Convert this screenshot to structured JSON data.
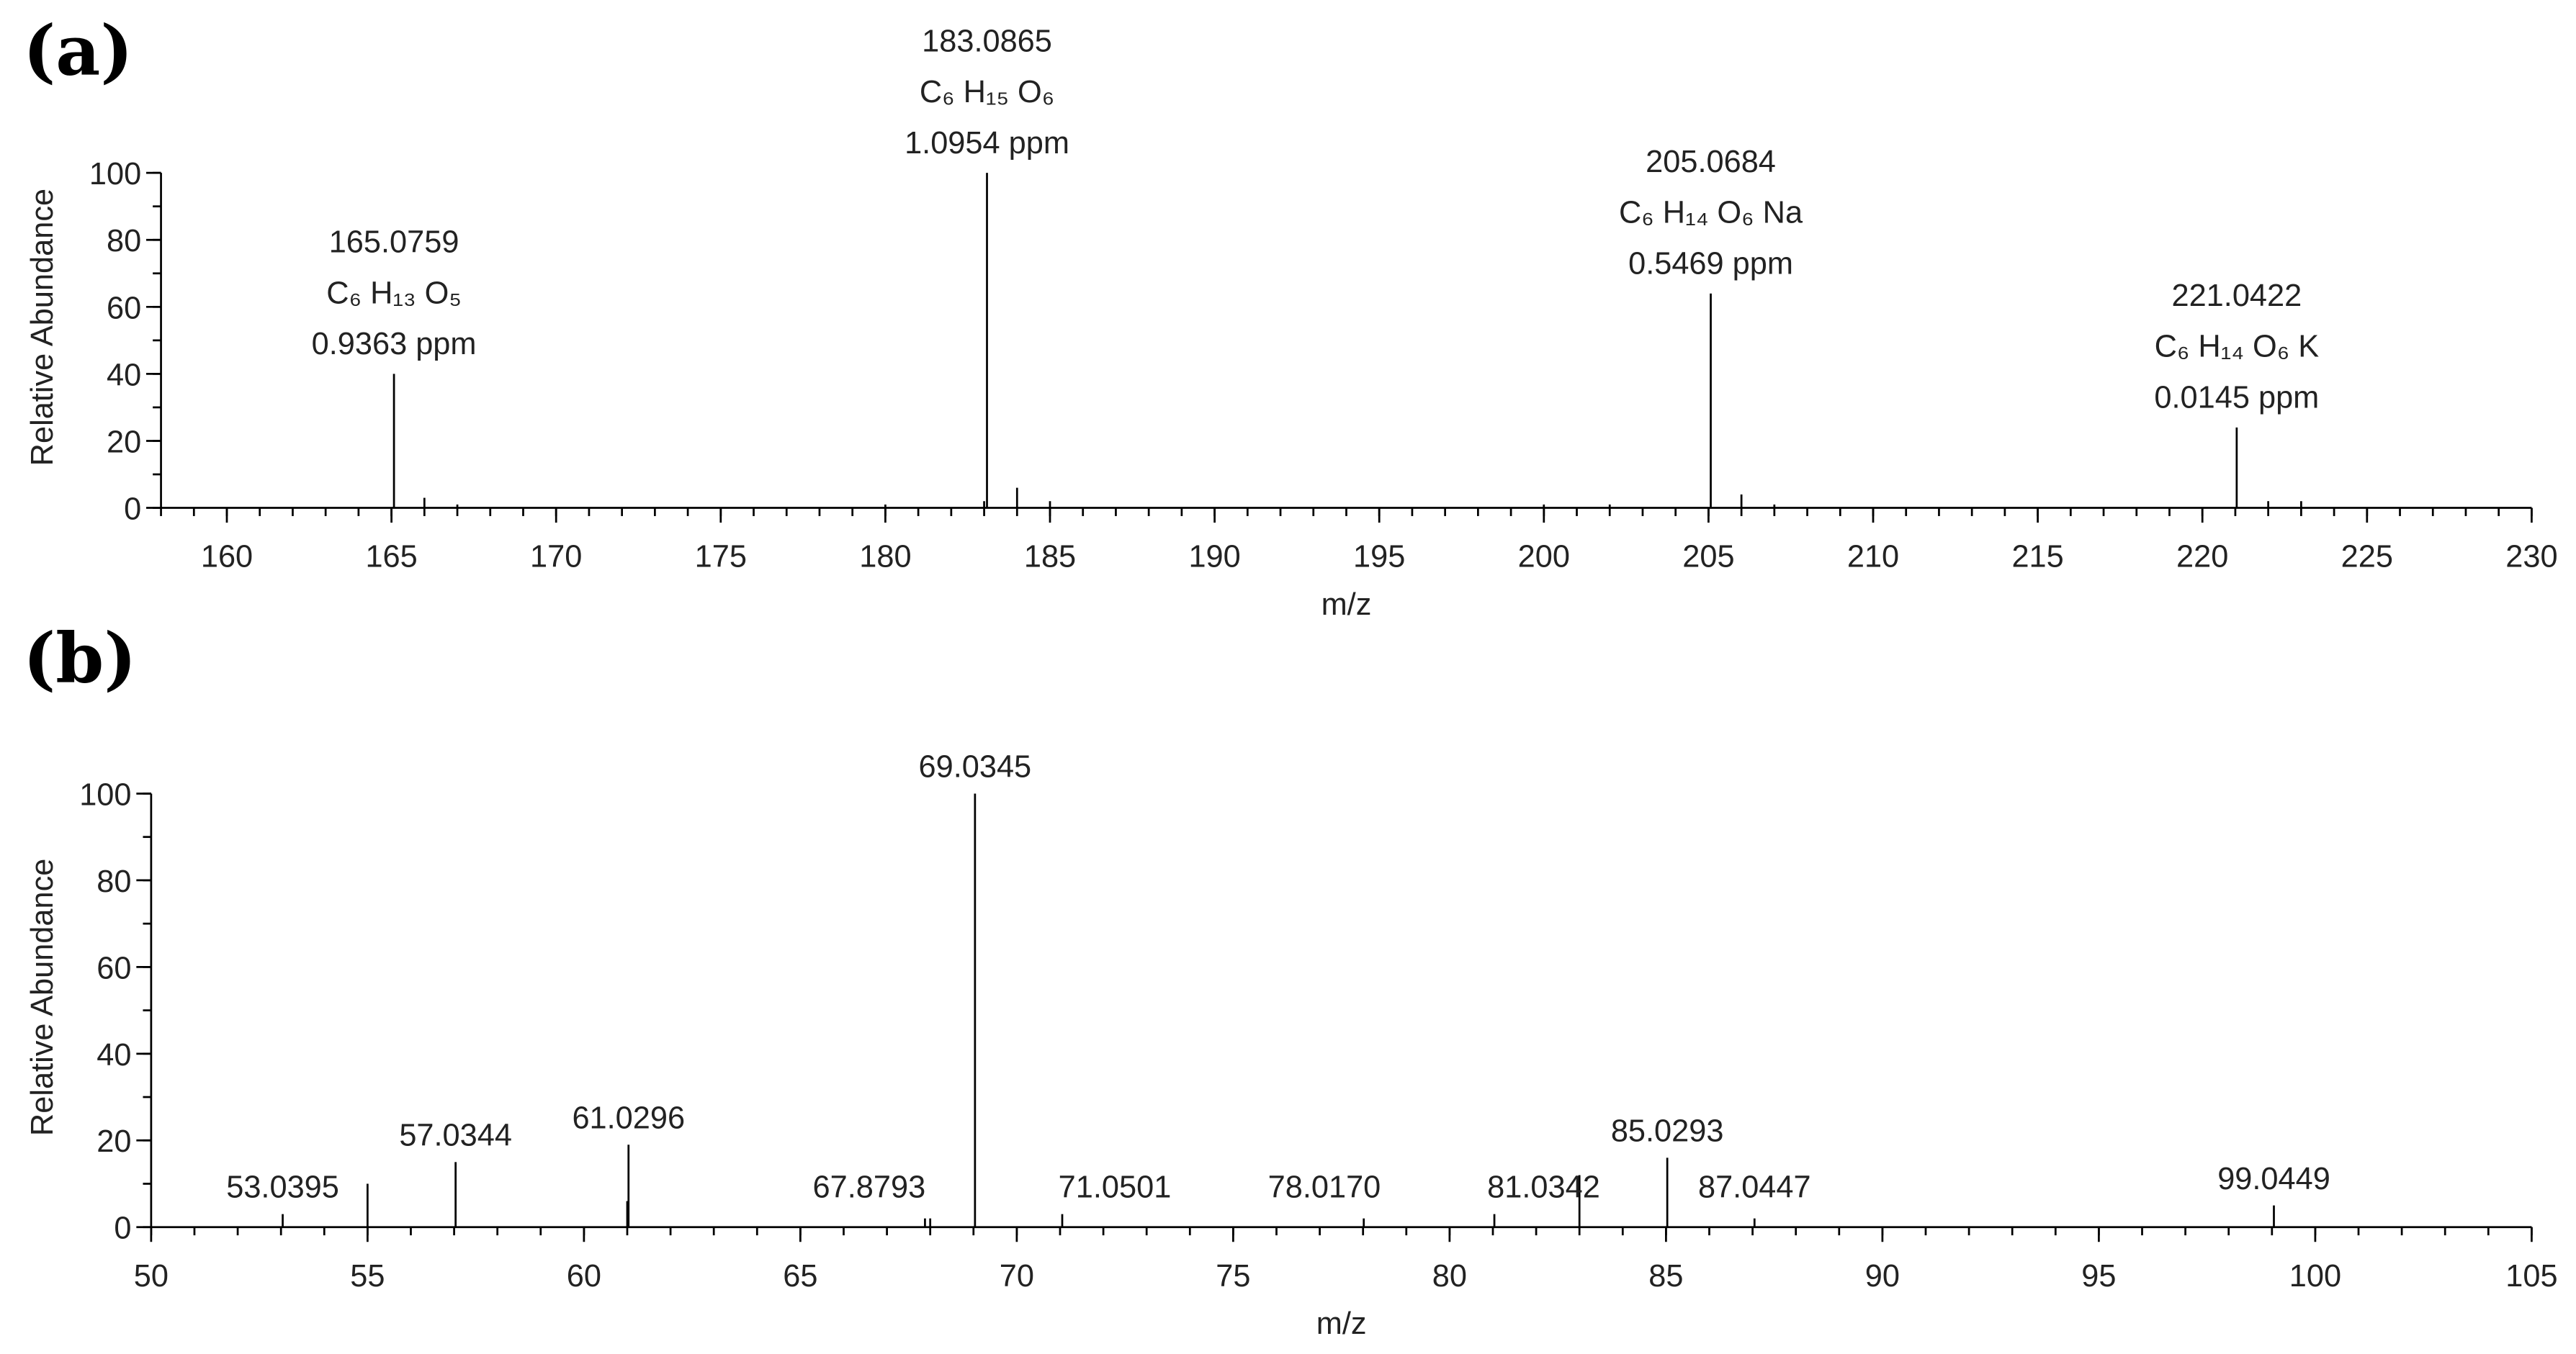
{
  "chart_data": [
    {
      "type": "bar",
      "panel_label": "(a)",
      "xlabel": "m/z",
      "ylabel": "Relative Abundance",
      "color": "#000000",
      "x": [
        165.0759,
        183.0865,
        205.0684,
        221.0422
      ],
      "values": [
        40,
        100,
        64,
        24
      ],
      "formulas": [
        "C₆ H₁₃ O₅",
        "C₆ H₁₅ O₆",
        "C₆ H₁₄ O₆ Na",
        "C₆ H₁₄ O₆ K"
      ],
      "ppm": [
        "0.9363 ppm",
        "1.0954 ppm",
        "0.5469 ppm",
        "0.0145 ppm"
      ],
      "minor_x": [
        166,
        167,
        180,
        183,
        184,
        185,
        200,
        202,
        206,
        207,
        222,
        223
      ],
      "minor_values": [
        3,
        1,
        1,
        2,
        6,
        2,
        1,
        1,
        4,
        1,
        2,
        2
      ],
      "xlim": [
        158,
        230
      ],
      "xticks": [
        160,
        165,
        170,
        175,
        180,
        185,
        190,
        195,
        200,
        205,
        210,
        215,
        220,
        225,
        230
      ],
      "xminor_step": 1,
      "ylim": [
        0,
        100
      ],
      "yticks": [
        0,
        20,
        40,
        60,
        80,
        100
      ],
      "yminor_step": 10
    },
    {
      "type": "bar",
      "panel_label": "(b)",
      "xlabel": "m/z",
      "ylabel": "Relative Abundance",
      "color": "#000000",
      "x": [
        53.0395,
        57.0344,
        61.0296,
        67.8793,
        69.0345,
        71.0501,
        78.017,
        81.0342,
        85.0293,
        87.0447,
        99.0449
      ],
      "x_labels": [
        "53.0395",
        "57.0344",
        "61.0296",
        "67.8793",
        "69.0345",
        "71.0501",
        "78.0170",
        "81.0342",
        "85.0293",
        "87.0447",
        "99.0449"
      ],
      "values": [
        3,
        15,
        19,
        2,
        100,
        3,
        2,
        3,
        16,
        2,
        5
      ],
      "minor_x": [
        55,
        61,
        68,
        83
      ],
      "minor_values": [
        10,
        6,
        2,
        12
      ],
      "xlim": [
        50,
        105
      ],
      "xticks": [
        50,
        55,
        60,
        65,
        70,
        75,
        80,
        85,
        90,
        95,
        100,
        105
      ],
      "xminor_step": 1,
      "ylim": [
        0,
        100
      ],
      "yticks": [
        0,
        20,
        40,
        60,
        80,
        100
      ],
      "yminor_step": 10
    }
  ]
}
